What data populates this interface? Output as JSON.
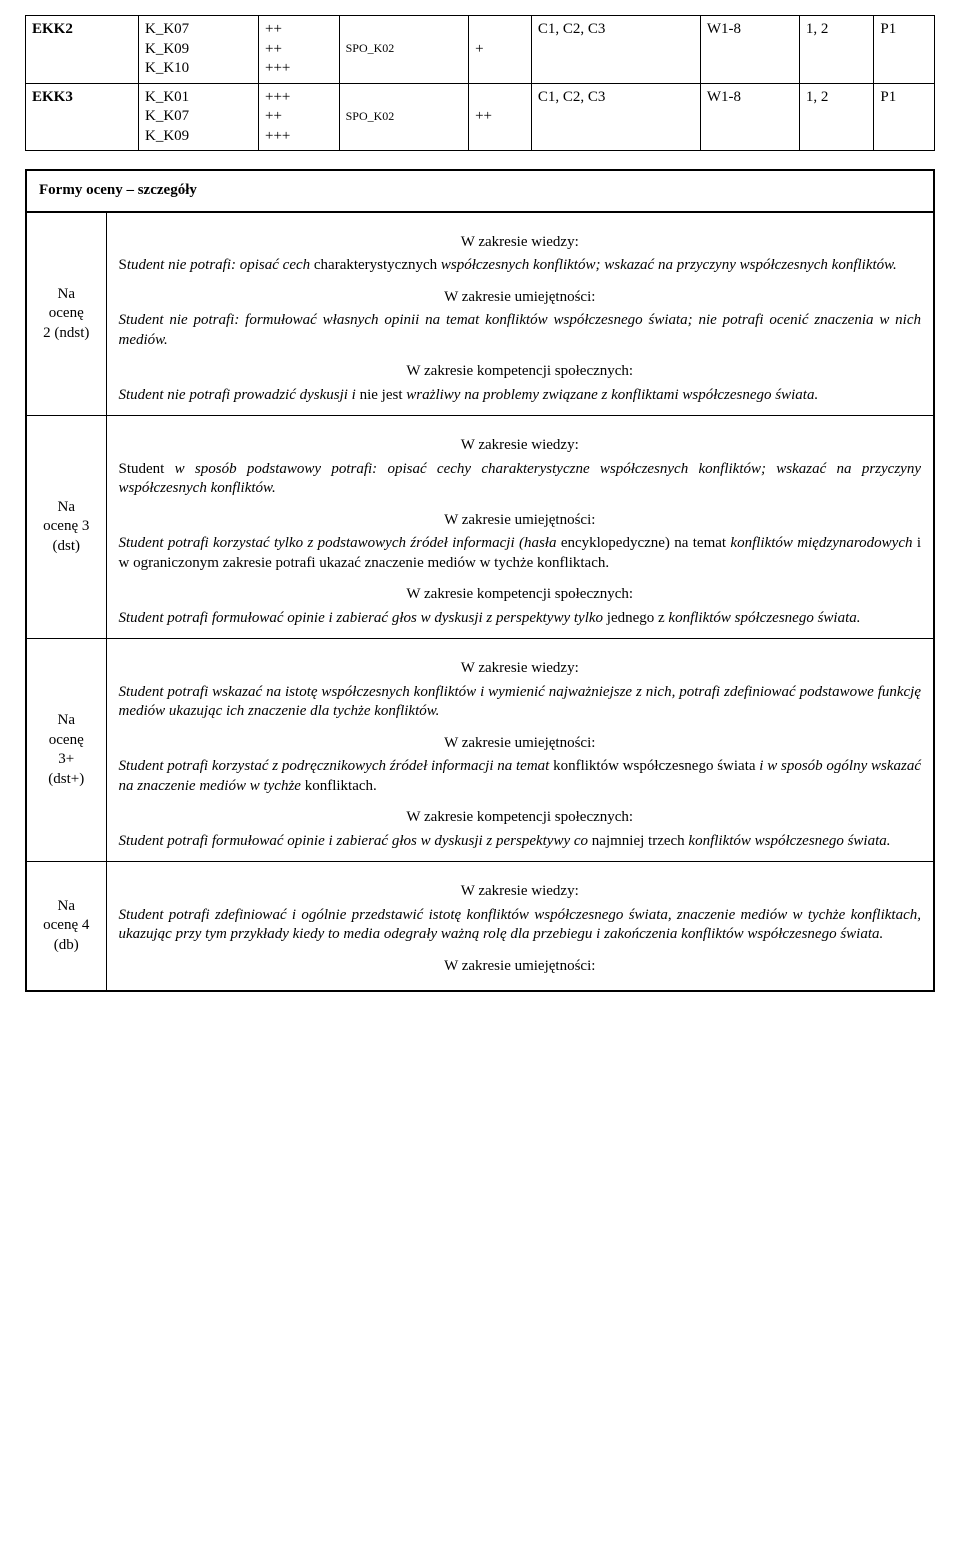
{
  "topTable": {
    "rows": [
      {
        "c1": "EKK2",
        "c2_lines": [
          "K_K07",
          "K_K09",
          "K_K10"
        ],
        "c3_lines": [
          "++",
          "++",
          "+++"
        ],
        "c4": "SPO_K02",
        "c5": "+",
        "c6": "C1, C2, C3",
        "c7": "W1-8",
        "c8": "1, 2",
        "c9": "P1"
      },
      {
        "c1": "EKK3",
        "c2_lines": [
          "K_K01",
          "K_K07",
          "K_K09"
        ],
        "c3_lines": [
          "+++",
          "++",
          "+++"
        ],
        "c4": "SPO_K02",
        "c5": "++",
        "c6": "C1, C2, C3",
        "c7": "W1-8",
        "c8": "1, 2",
        "c9": "P1"
      }
    ]
  },
  "gradesHeader": "Formy oceny – szczegóły",
  "sections": {
    "wiedzy": "W zakresie wiedzy:",
    "umiejetnosci": "W zakresie umiejętności:",
    "kompetencji": "W zakresie kompetencji społecznych:"
  },
  "grades": [
    {
      "label_lines": [
        "Na",
        "ocenę",
        "2 (ndst)"
      ],
      "wiedzy_prefix": "S",
      "wiedzy_italic": "tudent nie potrafi: opisać cech ",
      "wiedzy_mid": "charakterystycznych",
      "wiedzy_suffix_italic": " współczesnych konfliktów; wskazać na przyczyny współczesnych konfliktów.",
      "umiejetnosci": "Student nie potrafi: formułować własnych opinii na temat konfliktów współczesnego świata; nie potrafi ocenić znaczenia w nich mediów.",
      "kompetencji_italic1": "Student nie potrafi prowadzić dyskusji i ",
      "kompetencji_normal": "nie jest ",
      "kompetencji_italic2": "wrażliwy na problemy związane z konfliktami współczesnego świata."
    },
    {
      "label_lines": [
        "Na",
        "ocenę 3",
        "(dst)"
      ],
      "wiedzy_prefix": "Student ",
      "wiedzy_italic": "w sposób podstawowy potrafi: opisać cechy charakterystyczne współczesnych konfliktów; wskazać na przyczyny współczesnych konfliktów.",
      "umiejetnosci_italic1": "Student potrafi korzystać tylko z podstawowych źródeł informacji (hasła ",
      "umiejetnosci_normal1": "encyklopedyczne) na temat ",
      "umiejetnosci_italic2": "konfliktów międzynarodowych",
      "umiejetnosci_normal2": " i w ograniczonym zakresie potrafi ukazać ",
      "umiejetnosci_normal3": "znaczenie mediów w tychże konfliktach.",
      "kompetencji_italic": "Student potrafi formułować opinie i zabierać głos w dyskusji z perspektywy tylko ",
      "kompetencji_normal": "jednego z ",
      "kompetencji_italic2": "konfliktów spółczesnego świata."
    },
    {
      "label_lines": [
        "Na",
        "ocenę",
        "3+",
        "(dst+)"
      ],
      "wiedzy": "Student potrafi wskazać na istotę współczesnych konfliktów i wymienić najważniejsze z nich, potrafi zdefiniować podstawowe funkcję mediów ukazując ich znaczenie dla tychże konfliktów.",
      "umiejetnosci_italic1": "Student potrafi korzystać z podręcznikowych źródeł informacji na temat ",
      "umiejetnosci_normal1": "konfliktów współczesnego świata",
      "umiejetnosci_italic2": " i w sposób ogólny wskazać na znaczenie mediów w tychże ",
      "umiejetnosci_normal2": "konfliktach.",
      "kompetencji_italic": "Student potrafi formułować opinie i zabierać głos w dyskusji z perspektywy co ",
      "kompetencji_normal": "najmniej trzech ",
      "kompetencji_italic2": "konfliktów współczesnego świata."
    },
    {
      "label_lines": [
        "Na",
        "ocenę 4",
        "(db)"
      ],
      "wiedzy": "Student potrafi zdefiniować i ogólnie przedstawić istotę konfliktów współczesnego świata, znaczenie mediów w tychże konfliktach, ukazując przy tym przykłady kiedy to media odegrały ważną rolę dla przebiegu i zakończenia konfliktów współczesnego świata."
    }
  ]
}
